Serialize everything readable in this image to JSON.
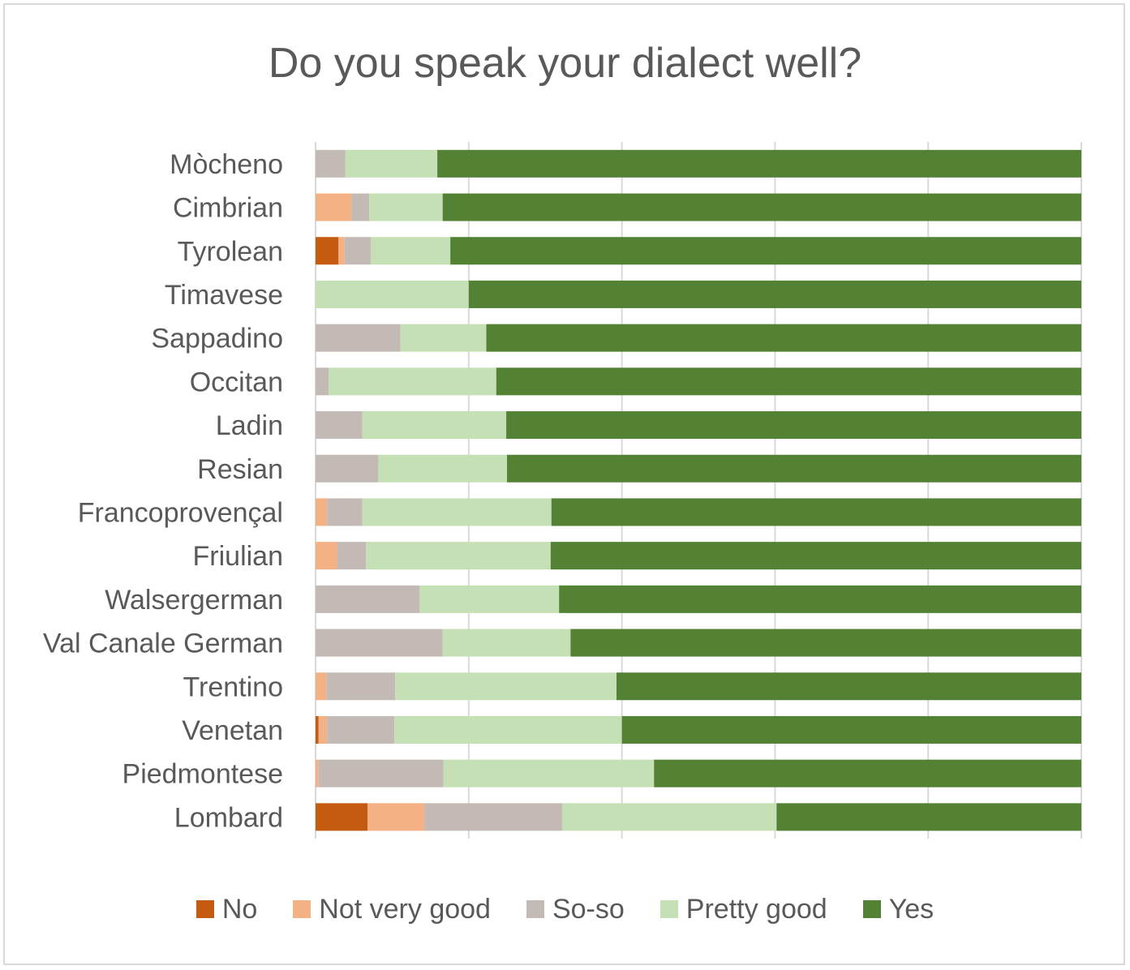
{
  "chart_data": {
    "type": "bar",
    "orientation": "horizontal",
    "stacked": true,
    "normalized": true,
    "title": "Do you speak your dialect well?",
    "categories": [
      "Mòcheno",
      "Cimbrian",
      "Tyrolean",
      "Timavese",
      "Sappadino",
      "Occitan",
      "Ladin",
      "Resian",
      "Francoprovençal",
      "Friulian",
      "Walsergerman",
      "Val Canale German",
      "Trentino",
      "Venetan",
      "Piedmontese",
      "Lombard"
    ],
    "series": [
      {
        "name": "No",
        "color": "#c55a11",
        "values": [
          0,
          0,
          3.0,
          0,
          0,
          0,
          0,
          0,
          0,
          0,
          0,
          0,
          0,
          0.4,
          0,
          6.8
        ]
      },
      {
        "name": "Not very good",
        "color": "#f4b183",
        "values": [
          0,
          4.7,
          0.8,
          0,
          0,
          0,
          0,
          0,
          1.5,
          2.8,
          0,
          0,
          1.4,
          1.1,
          0.4,
          7.4
        ]
      },
      {
        "name": "So-so",
        "color": "#c4bab5",
        "values": [
          3.9,
          2.3,
          3.4,
          0,
          11.1,
          1.7,
          6.1,
          8.2,
          4.6,
          3.8,
          13.6,
          16.6,
          9.0,
          8.8,
          16.3,
          18.0
        ]
      },
      {
        "name": "Pretty good",
        "color": "#c5e0b4",
        "values": [
          12.0,
          9.6,
          10.4,
          20.0,
          11.2,
          21.9,
          18.8,
          16.8,
          24.7,
          24.1,
          18.2,
          16.7,
          28.9,
          29.7,
          27.5,
          28.0
        ]
      },
      {
        "name": "Yes",
        "color": "#548235",
        "values": [
          84.1,
          83.4,
          82.4,
          80.0,
          77.7,
          76.4,
          75.1,
          75.0,
          69.2,
          69.3,
          68.2,
          66.7,
          60.7,
          60.0,
          55.8,
          39.8
        ]
      }
    ],
    "xlim": [
      0,
      100
    ],
    "x_ticks_shown": false,
    "grid": "vertical",
    "legend": "bottom"
  }
}
